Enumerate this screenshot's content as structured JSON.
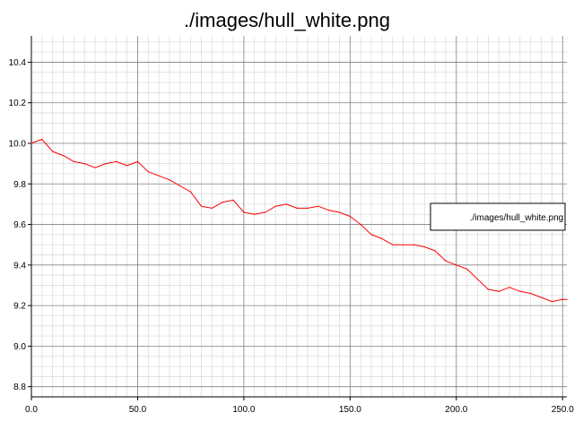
{
  "chart_data": {
    "type": "line",
    "title": "./images/hull_white.png",
    "xlabel": "",
    "ylabel": "",
    "xlim": [
      0,
      252
    ],
    "ylim": [
      8.75,
      10.53
    ],
    "x_ticks": [
      0,
      50,
      100,
      150,
      200,
      250
    ],
    "x_tick_labels": [
      "0.0",
      "50.0",
      "100.0",
      "150.0",
      "200.0",
      "250.0"
    ],
    "y_ticks": [
      8.8,
      9.0,
      9.2,
      9.4,
      9.6,
      9.8,
      10.0,
      10.2,
      10.4
    ],
    "y_tick_labels": [
      "8.8",
      "9.0",
      "9.2",
      "9.4",
      "9.6",
      "9.8",
      "10.0",
      "10.2",
      "10.4"
    ],
    "grid": true,
    "legend": {
      "position": "right",
      "entries": [
        "./images/hull_white.png"
      ]
    },
    "colors": {
      "series": "#ff0000",
      "major_grid": "#808080",
      "minor_grid": "#d9d9d9"
    },
    "series": [
      {
        "name": "./images/hull_white.png",
        "x": [
          0,
          5,
          10,
          15,
          20,
          25,
          30,
          35,
          40,
          45,
          50,
          55,
          60,
          65,
          70,
          75,
          80,
          85,
          90,
          95,
          100,
          105,
          110,
          115,
          120,
          125,
          130,
          135,
          140,
          145,
          150,
          155,
          160,
          165,
          170,
          175,
          180,
          185,
          190,
          195,
          200,
          205,
          210,
          215,
          220,
          225,
          230,
          235,
          240,
          245,
          250,
          252
        ],
        "y": [
          10.0,
          10.02,
          9.96,
          9.94,
          9.91,
          9.9,
          9.88,
          9.9,
          9.91,
          9.89,
          9.91,
          9.86,
          9.84,
          9.82,
          9.79,
          9.76,
          9.69,
          9.68,
          9.71,
          9.72,
          9.66,
          9.65,
          9.66,
          9.69,
          9.7,
          9.68,
          9.68,
          9.69,
          9.67,
          9.66,
          9.64,
          9.6,
          9.55,
          9.53,
          9.5,
          9.5,
          9.5,
          9.49,
          9.47,
          9.42,
          9.4,
          9.38,
          9.33,
          9.28,
          9.27,
          9.29,
          9.27,
          9.26,
          9.24,
          9.22,
          9.23,
          9.23
        ]
      }
    ]
  }
}
